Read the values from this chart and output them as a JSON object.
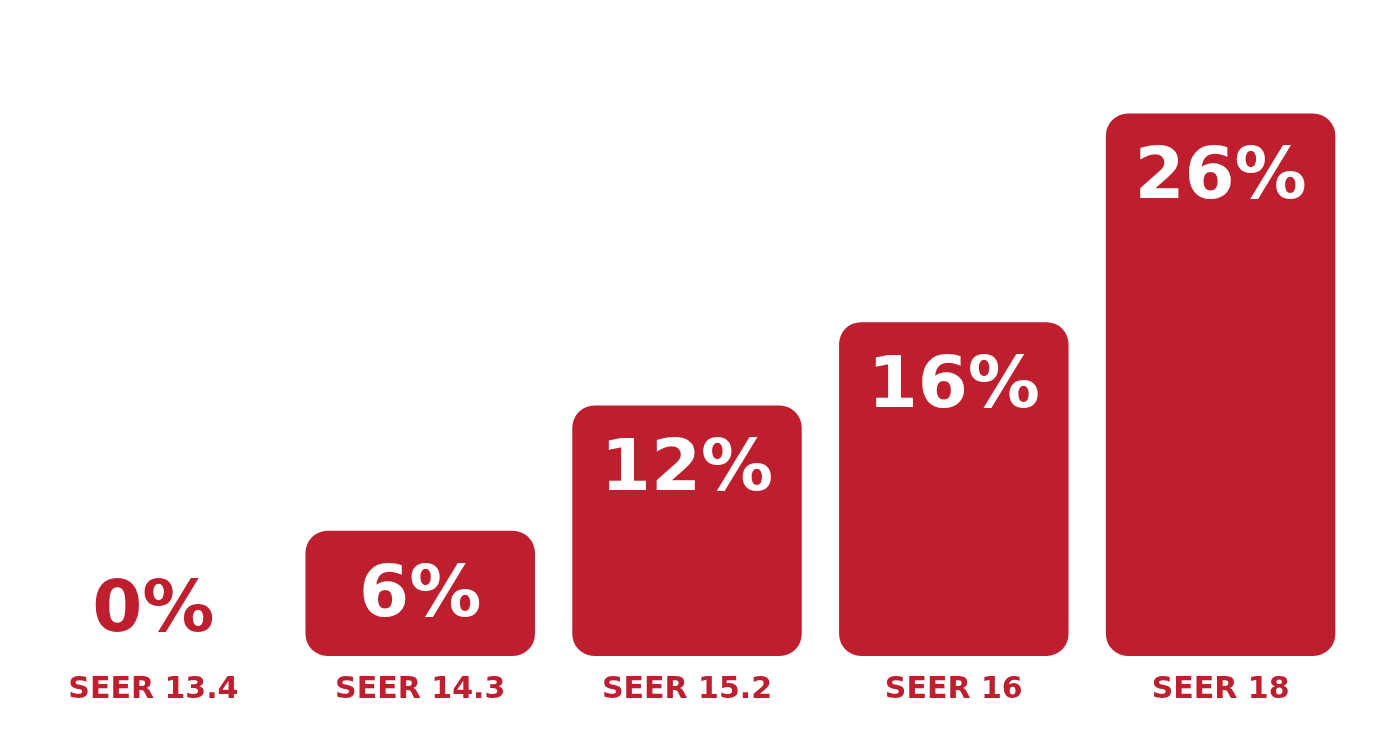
{
  "chart_data": {
    "type": "bar",
    "categories": [
      "SEER 13.4",
      "SEER 14.3",
      "SEER 15.2",
      "SEER 16",
      "SEER 18"
    ],
    "values": [
      0,
      6,
      12,
      16,
      26
    ],
    "value_labels": [
      "0%",
      "6%",
      "12%",
      "16%",
      "26%"
    ],
    "color": "#be1e2d",
    "grid": false,
    "legend": false
  }
}
